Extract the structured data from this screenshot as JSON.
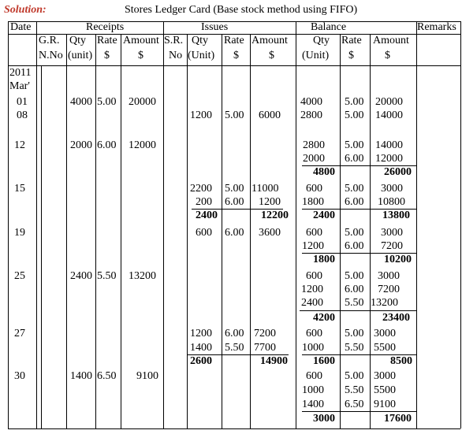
{
  "heading": {
    "solution_label": "Solution:",
    "title": "Stores Ledger Card (Base stock method using FIFO)"
  },
  "header": {
    "date": "Date",
    "receipts": "Receipts",
    "issues": "Issues",
    "balance": "Balance",
    "remarks": "Remarks",
    "grn_1": "G.R.",
    "grn_2": "N.No",
    "qty_r": "Qty",
    "unit_r": "(unit)",
    "rate_r": "Rate",
    "amount_r": "Amount",
    "sr_1": "S.R.",
    "sr_2": "No",
    "qty_i": "Qty",
    "unit_i": "(Unit)",
    "rate_i": "Rate",
    "amount_i": "Amount",
    "qty_b": "Qty",
    "unit_b": "(Unit)",
    "rate_b": "Rate",
    "amount_b": "Amount",
    "dollar": "$"
  },
  "dates": {
    "year": "2011",
    "month": "Mar'",
    "d01": "01",
    "d08": "08",
    "d12": "12",
    "d15": "15",
    "d19": "19",
    "d25": "25",
    "d27": "27",
    "d30": "30"
  },
  "receipts": [
    {
      "qty": "4000",
      "rate": "5.00",
      "amount": "20000"
    },
    {
      "qty": "2000",
      "rate": "6.00",
      "amount": "12000"
    },
    {
      "qty": "2400",
      "rate": "5.50",
      "amount": "13200"
    },
    {
      "qty": "1400",
      "rate": "6.50",
      "amount": "9100"
    }
  ],
  "issues": [
    {
      "qty": "1200",
      "rate": "5.00",
      "amount": "6000"
    },
    {
      "qty": "2200",
      "rate": "5.00",
      "amount": "11000"
    },
    {
      "qty": "200",
      "rate": "6.00",
      "amount": "1200"
    },
    {
      "qty": "2400",
      "amount": "12200"
    },
    {
      "qty": "600",
      "rate": "6.00",
      "amount": "3600"
    },
    {
      "qty": "1200",
      "rate": "6.00",
      "amount": "7200"
    },
    {
      "qty": "1400",
      "rate": "5.50",
      "amount": "7700"
    },
    {
      "qty": "2600",
      "amount": "14900"
    }
  ],
  "balance": [
    {
      "qty": "4000",
      "rate": "5.00",
      "amount": "20000"
    },
    {
      "qty": "2800",
      "rate": "5.00",
      "amount": "14000"
    },
    {
      "qty": "2800",
      "rate": "5.00",
      "amount": "14000"
    },
    {
      "qty": "2000",
      "rate": "6.00",
      "amount": "12000"
    },
    {
      "qty": "4800",
      "amount": "26000"
    },
    {
      "qty": "600",
      "rate": "5.00",
      "amount": "3000"
    },
    {
      "qty": "1800",
      "rate": "6.00",
      "amount": "10800"
    },
    {
      "qty": "2400",
      "amount": "13800"
    },
    {
      "qty": "600",
      "rate": "5.00",
      "amount": "3000"
    },
    {
      "qty": "1200",
      "rate": "6.00",
      "amount": "7200"
    },
    {
      "qty": "1800",
      "amount": "10200"
    },
    {
      "qty": "600",
      "rate": "5.00",
      "amount": "3000"
    },
    {
      "qty": "1200",
      "rate": "6.00",
      "amount": "7200"
    },
    {
      "qty": "2400",
      "rate": "5.50",
      "amount": "13200"
    },
    {
      "qty": "4200",
      "amount": "23400"
    },
    {
      "qty": "600",
      "rate": "5.00",
      "amount": "3000"
    },
    {
      "qty": "1000",
      "rate": "5.50",
      "amount": "5500"
    },
    {
      "qty": "1600",
      "amount": "8500"
    },
    {
      "qty": "600",
      "rate": "5.00",
      "amount": "3000"
    },
    {
      "qty": "1000",
      "rate": "5.50",
      "amount": "5500"
    },
    {
      "qty": "1400",
      "rate": "6.50",
      "amount": "9100"
    },
    {
      "qty": "3000",
      "amount": "17600"
    }
  ]
}
